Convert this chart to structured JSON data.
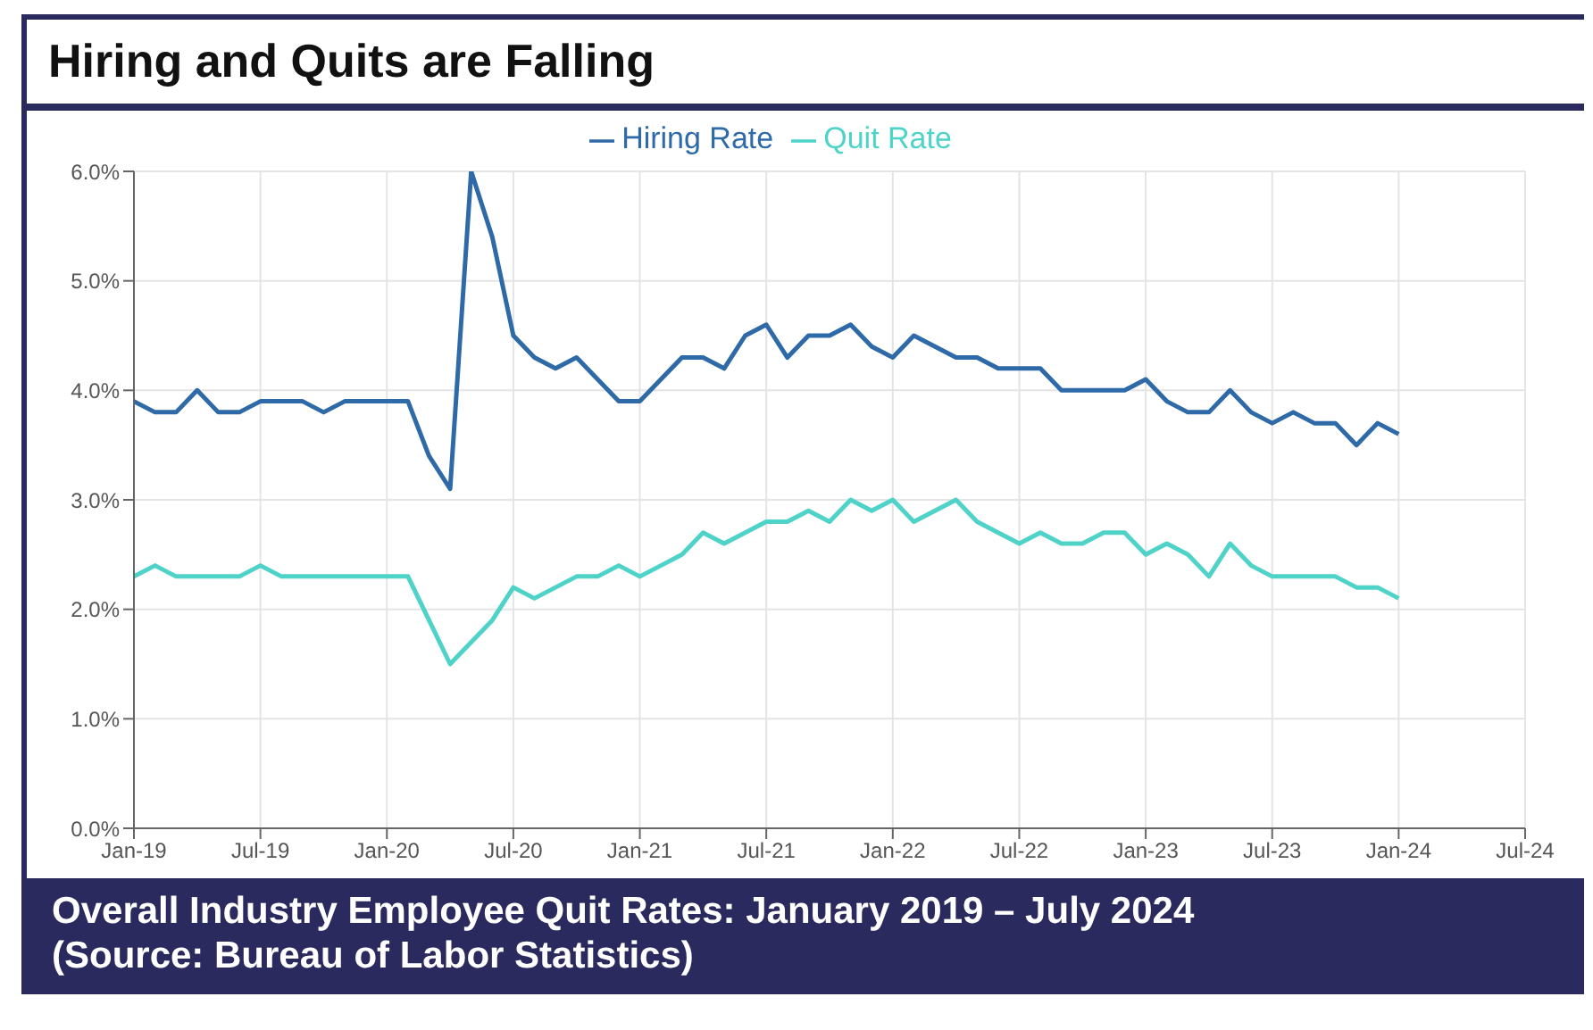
{
  "chart_data": {
    "type": "line",
    "title": "Hiring and Quits are Falling",
    "annotations": [
      "Overall Industry Employee Quit Rates: January 2019 – July 2024",
      "(Source: Bureau of Labor Statistics)"
    ],
    "x": [
      "2019-01",
      "2019-02",
      "2019-03",
      "2019-04",
      "2019-05",
      "2019-06",
      "2019-07",
      "2019-08",
      "2019-09",
      "2019-10",
      "2019-11",
      "2019-12",
      "2020-01",
      "2020-02",
      "2020-03",
      "2020-04",
      "2020-05",
      "2020-06",
      "2020-07",
      "2020-08",
      "2020-09",
      "2020-10",
      "2020-11",
      "2020-12",
      "2021-01",
      "2021-02",
      "2021-03",
      "2021-04",
      "2021-05",
      "2021-06",
      "2021-07",
      "2021-08",
      "2021-09",
      "2021-10",
      "2021-11",
      "2021-12",
      "2022-01",
      "2022-02",
      "2022-03",
      "2022-04",
      "2022-05",
      "2022-06",
      "2022-07",
      "2022-08",
      "2022-09",
      "2022-10",
      "2022-11",
      "2022-12",
      "2023-01",
      "2023-02",
      "2023-03",
      "2023-04",
      "2023-05",
      "2023-06",
      "2023-07",
      "2023-08",
      "2023-09",
      "2023-10",
      "2023-11",
      "2023-12",
      "2024-01"
    ],
    "series": [
      {
        "name": "Hiring Rate",
        "color": "#2f6aa8",
        "values": [
          3.9,
          3.8,
          3.8,
          4.0,
          3.8,
          3.8,
          3.9,
          3.9,
          3.9,
          3.8,
          3.9,
          3.9,
          3.9,
          3.9,
          3.4,
          3.1,
          6.0,
          5.4,
          4.5,
          4.3,
          4.2,
          4.3,
          4.1,
          3.9,
          3.9,
          4.1,
          4.3,
          4.3,
          4.2,
          4.5,
          4.6,
          4.3,
          4.5,
          4.5,
          4.6,
          4.4,
          4.3,
          4.5,
          4.4,
          4.3,
          4.3,
          4.2,
          4.2,
          4.2,
          4.0,
          4.0,
          4.0,
          4.0,
          4.1,
          3.9,
          3.8,
          3.8,
          4.0,
          3.8,
          3.7,
          3.8,
          3.7,
          3.7,
          3.5,
          3.7,
          3.6
        ]
      },
      {
        "name": "Quit Rate",
        "color": "#4fd3c8",
        "values": [
          2.3,
          2.4,
          2.3,
          2.3,
          2.3,
          2.3,
          2.4,
          2.3,
          2.3,
          2.3,
          2.3,
          2.3,
          2.3,
          2.3,
          1.9,
          1.5,
          1.7,
          1.9,
          2.2,
          2.1,
          2.2,
          2.3,
          2.3,
          2.4,
          2.3,
          2.4,
          2.5,
          2.7,
          2.6,
          2.7,
          2.8,
          2.8,
          2.9,
          2.8,
          3.0,
          2.9,
          3.0,
          2.8,
          2.9,
          3.0,
          2.8,
          2.7,
          2.6,
          2.7,
          2.6,
          2.6,
          2.7,
          2.7,
          2.5,
          2.6,
          2.5,
          2.3,
          2.6,
          2.4,
          2.3,
          2.3,
          2.3,
          2.3,
          2.2,
          2.2,
          2.1
        ]
      }
    ],
    "xlim": [
      "2019-01",
      "2024-07"
    ],
    "xticks": [
      {
        "value": "2019-01",
        "label": "Jan-19"
      },
      {
        "value": "2019-07",
        "label": "Jul-19"
      },
      {
        "value": "2020-01",
        "label": "Jan-20"
      },
      {
        "value": "2020-07",
        "label": "Jul-20"
      },
      {
        "value": "2021-01",
        "label": "Jan-21"
      },
      {
        "value": "2021-07",
        "label": "Jul-21"
      },
      {
        "value": "2022-01",
        "label": "Jan-22"
      },
      {
        "value": "2022-07",
        "label": "Jul-22"
      },
      {
        "value": "2023-01",
        "label": "Jan-23"
      },
      {
        "value": "2023-07",
        "label": "Jul-23"
      },
      {
        "value": "2024-01",
        "label": "Jan-24"
      },
      {
        "value": "2024-07",
        "label": "Jul-24"
      }
    ],
    "ylim": [
      0,
      6
    ],
    "yticks": [
      {
        "value": 0,
        "label": "0.0%"
      },
      {
        "value": 1,
        "label": "1.0%"
      },
      {
        "value": 2,
        "label": "2.0%"
      },
      {
        "value": 3,
        "label": "3.0%"
      },
      {
        "value": 4,
        "label": "4.0%"
      },
      {
        "value": 5,
        "label": "5.0%"
      },
      {
        "value": 6,
        "label": "6.0%"
      }
    ],
    "grid": true,
    "legend": "top"
  }
}
